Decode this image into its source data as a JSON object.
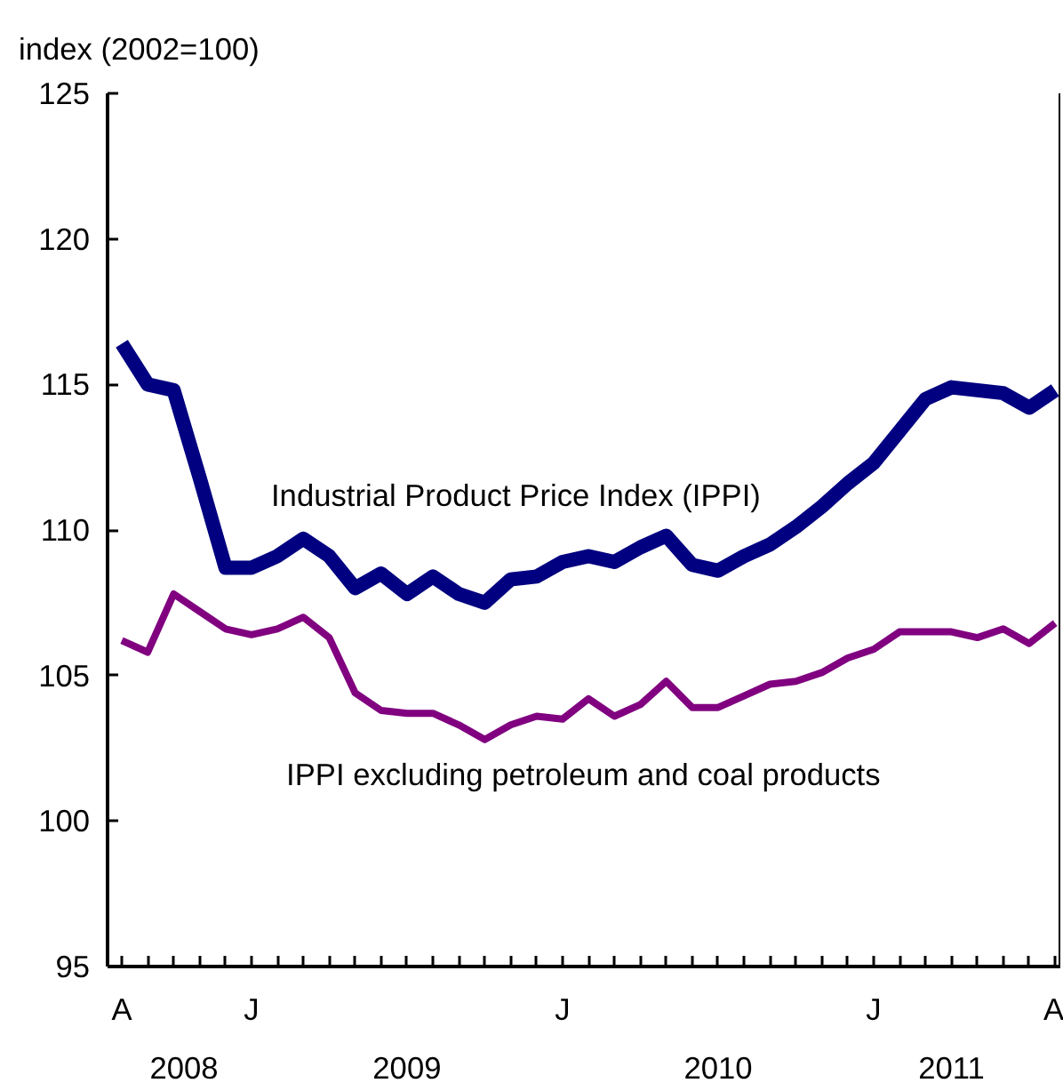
{
  "chart_data": {
    "type": "line",
    "ylabel": "index (2002=100)",
    "categories": [
      "A",
      null,
      null,
      null,
      null,
      "J",
      null,
      null,
      null,
      null,
      null,
      null,
      null,
      null,
      null,
      null,
      null,
      "J",
      null,
      null,
      null,
      null,
      null,
      null,
      null,
      null,
      null,
      null,
      null,
      "J",
      null,
      null,
      null,
      null,
      null,
      null,
      "A"
    ],
    "series": [
      {
        "name": "Industrial Product Price Index (IPPI)",
        "color": "#000080",
        "values": [
          116.4,
          115.0,
          114.8,
          111.8,
          108.7,
          108.7,
          109.1,
          109.7,
          109.1,
          108.0,
          108.5,
          107.8,
          108.4,
          107.8,
          107.5,
          108.3,
          108.4,
          108.9,
          109.1,
          108.9,
          109.4,
          109.8,
          108.8,
          108.6,
          109.1,
          109.5,
          110.1,
          110.8,
          111.6,
          112.3,
          113.4,
          114.5,
          114.9,
          114.8,
          114.7,
          114.2,
          114.8
        ]
      },
      {
        "name": "IPPI excluding petroleum and coal products",
        "color": "#800080",
        "values": [
          106.2,
          105.8,
          107.8,
          107.2,
          106.6,
          106.4,
          106.6,
          107.0,
          106.3,
          104.4,
          103.8,
          103.7,
          103.7,
          103.3,
          102.8,
          103.3,
          103.6,
          103.5,
          104.2,
          103.6,
          104.0,
          104.8,
          103.9,
          103.9,
          104.3,
          104.7,
          104.8,
          105.1,
          105.6,
          105.9,
          106.5,
          106.5,
          106.5,
          106.3,
          106.6,
          106.1,
          106.8
        ]
      }
    ],
    "ylim": [
      95,
      125
    ],
    "yticks": [
      95,
      100,
      105,
      110,
      115,
      120,
      125
    ],
    "annotations": [
      "2008",
      "2009",
      "2010",
      "2011"
    ],
    "grid": false,
    "marker": "none",
    "line_style": "solid"
  }
}
